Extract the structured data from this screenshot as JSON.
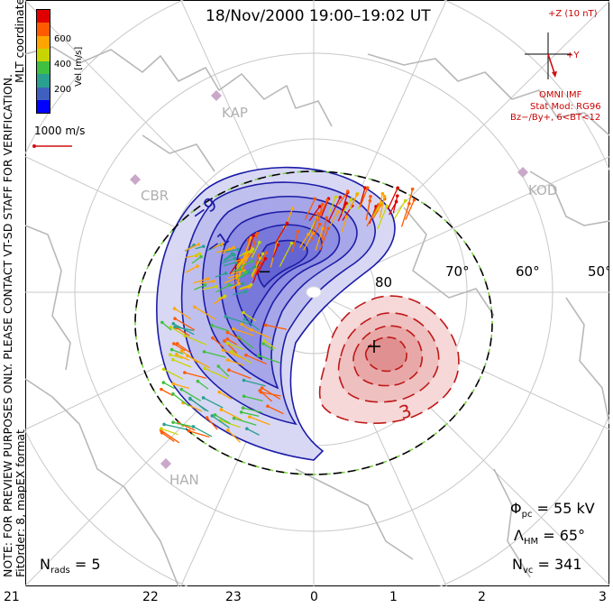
{
  "title": "18/Nov/2000  19:00–19:02  UT",
  "vertical_note": "NOTE: FOR PREVIEW PURPOSES ONLY. PLEASE CONTACT VT-SD STAFF FOR VERIFICATION.",
  "vertical_note2": "FitOrder: 8,  mapEX format",
  "mlt_coords": "MLT coordinates",
  "colorbar": {
    "label": "Vel [m/s]",
    "ticks": [
      "600",
      "400",
      "200"
    ],
    "colors": [
      "#e00000",
      "#ff5a00",
      "#ffa500",
      "#c8d400",
      "#40c040",
      "#2aa090",
      "#4060c0",
      "#0000ff"
    ]
  },
  "scale_vector": "1000 m/s",
  "imf": {
    "z_label": "+Z (10 nT)",
    "y_label": "+Y",
    "source": "OMNI IMF",
    "model": "Stat Mod: RG96",
    "condition": "Bz−/By+, 6<BT<12"
  },
  "radars": [
    "KAP",
    "CBR",
    "KOD",
    "HAN"
  ],
  "latitude_labels": [
    "80",
    "70°",
    "60°",
    "50°"
  ],
  "contour_labels": [
    "−9",
    "−1",
    "3"
  ],
  "potential_extrema": [
    "−",
    "+"
  ],
  "stats": {
    "phi_symbol": "Φ",
    "phi_sub": "pc",
    "phi_value": " = 55 kV",
    "lambda_symbol": "Λ",
    "lambda_sub": "HM",
    "lambda_value": " = 65°",
    "nvc_symbol": "N",
    "nvc_sub": "vc",
    "nvc_value": " = 341",
    "nrads_symbol": "N",
    "nrads_sub": "rads",
    "nrads_value": " = 5"
  },
  "mlt_hours": [
    "21",
    "22",
    "23",
    "0",
    "1",
    "2",
    "3"
  ]
}
